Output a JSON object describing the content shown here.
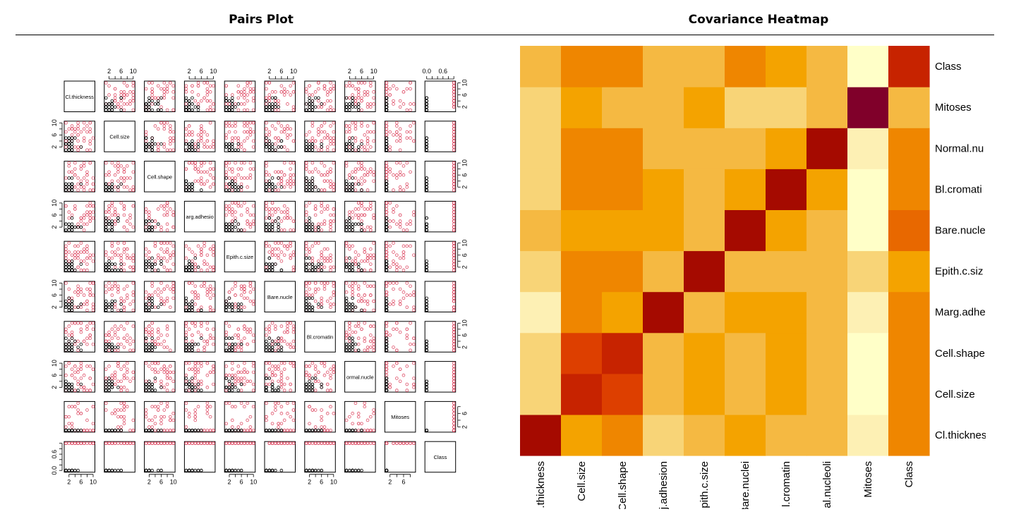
{
  "panels": {
    "left_title": "Pairs Plot",
    "right_title": "Covariance Heatmap"
  },
  "colors": {
    "benign_point": "#000000",
    "malignant_point": "#df536b",
    "heat_scale_low_to_high": [
      "#ffffc8",
      "#fdf0b4",
      "#f8d477",
      "#f5b942",
      "#f4a300",
      "#ef8600",
      "#e86800",
      "#dd3f00",
      "#c72300",
      "#a50a00",
      "#80002a"
    ]
  },
  "chart_data": [
    {
      "type": "scatter",
      "title": "Pairs Plot",
      "variables": [
        "Cl.thickness",
        "Cell.size",
        "Cell.shape",
        "Marg.adhesion",
        "Epith.c.size",
        "Bare.nuclei",
        "Bl.cromatin",
        "Normal.nucleoli",
        "Mitoses",
        "Class"
      ],
      "diagonal_labels": [
        "Cl.thickness",
        "Cell.size",
        "Cell.shape",
        "arg.adhesio",
        "Epith.c.size",
        "Bare.nucle",
        "Bl.cromatin",
        "ormal.nucle",
        "Mitoses",
        "Class"
      ],
      "axis_ticks": {
        "scale_1_10": [
          "2",
          "6",
          "10"
        ],
        "scale_1_9": [
          "2",
          "6"
        ],
        "scale_0_1": [
          "0.0",
          "0.6"
        ]
      },
      "ranges": {
        "measurement": [
          1,
          10
        ],
        "Mitoses": [
          1,
          9
        ],
        "Class": [
          0,
          1
        ]
      },
      "point_groups": [
        "benign (black)",
        "malignant (red)"
      ]
    },
    {
      "type": "heatmap",
      "title": "Covariance Heatmap",
      "x_labels": [
        "Cl.thickness",
        "Cell.size",
        "Cell.shape",
        "Marg.adhesion",
        "Epith.c.size",
        "Bare.nuclei",
        "Bl.cromatin",
        "Normal.nucleoli",
        "Mitoses",
        "Class"
      ],
      "x_tick_labels_visible": [
        ".thickness",
        "Cell.size",
        "Cell.shape",
        "j.adhesion",
        "pith.c.size",
        "Bare.nuclei",
        "l.cromatin",
        "al.nucleoli",
        "Mitoses",
        "Class"
      ],
      "y_labels_bottom_to_top": [
        "Cl.thickness",
        "Cell.size",
        "Cell.shape",
        "Marg.adhesion",
        "Epith.c.size",
        "Bare.nuclei",
        "Bl.cromatin",
        "Normal.nucleoli",
        "Mitoses",
        "Class"
      ],
      "y_tick_labels_visible_bottom_to_top": [
        "Cl.thicknes",
        "Cell.size",
        "Cell.shape",
        "Marg.adhe",
        "Epith.c.siz",
        "Bare.nucle",
        "Bl.cromati",
        "Normal.nu",
        "Mitoses",
        "Class"
      ],
      "color_level_note": "relative color level 0 (pale yellow) to 10 (dark red)",
      "color_levels_bottom_to_top": [
        [
          9,
          4,
          5,
          2,
          3,
          4,
          3,
          3,
          1,
          5
        ],
        [
          2,
          8,
          7,
          3,
          4,
          3,
          4,
          3,
          0,
          5
        ],
        [
          2,
          7,
          8,
          3,
          4,
          3,
          4,
          3,
          0,
          5
        ],
        [
          1,
          5,
          4,
          9,
          3,
          4,
          4,
          3,
          1,
          5
        ],
        [
          2,
          5,
          5,
          3,
          9,
          3,
          3,
          3,
          2,
          4
        ],
        [
          3,
          4,
          4,
          4,
          3,
          9,
          4,
          3,
          0,
          6
        ],
        [
          2,
          5,
          5,
          4,
          3,
          4,
          9,
          4,
          0,
          5
        ],
        [
          2,
          5,
          5,
          3,
          3,
          3,
          4,
          9,
          1,
          5
        ],
        [
          2,
          4,
          3,
          3,
          4,
          2,
          2,
          3,
          10,
          3
        ],
        [
          3,
          5,
          5,
          3,
          3,
          5,
          4,
          3,
          0,
          8
        ]
      ]
    }
  ]
}
